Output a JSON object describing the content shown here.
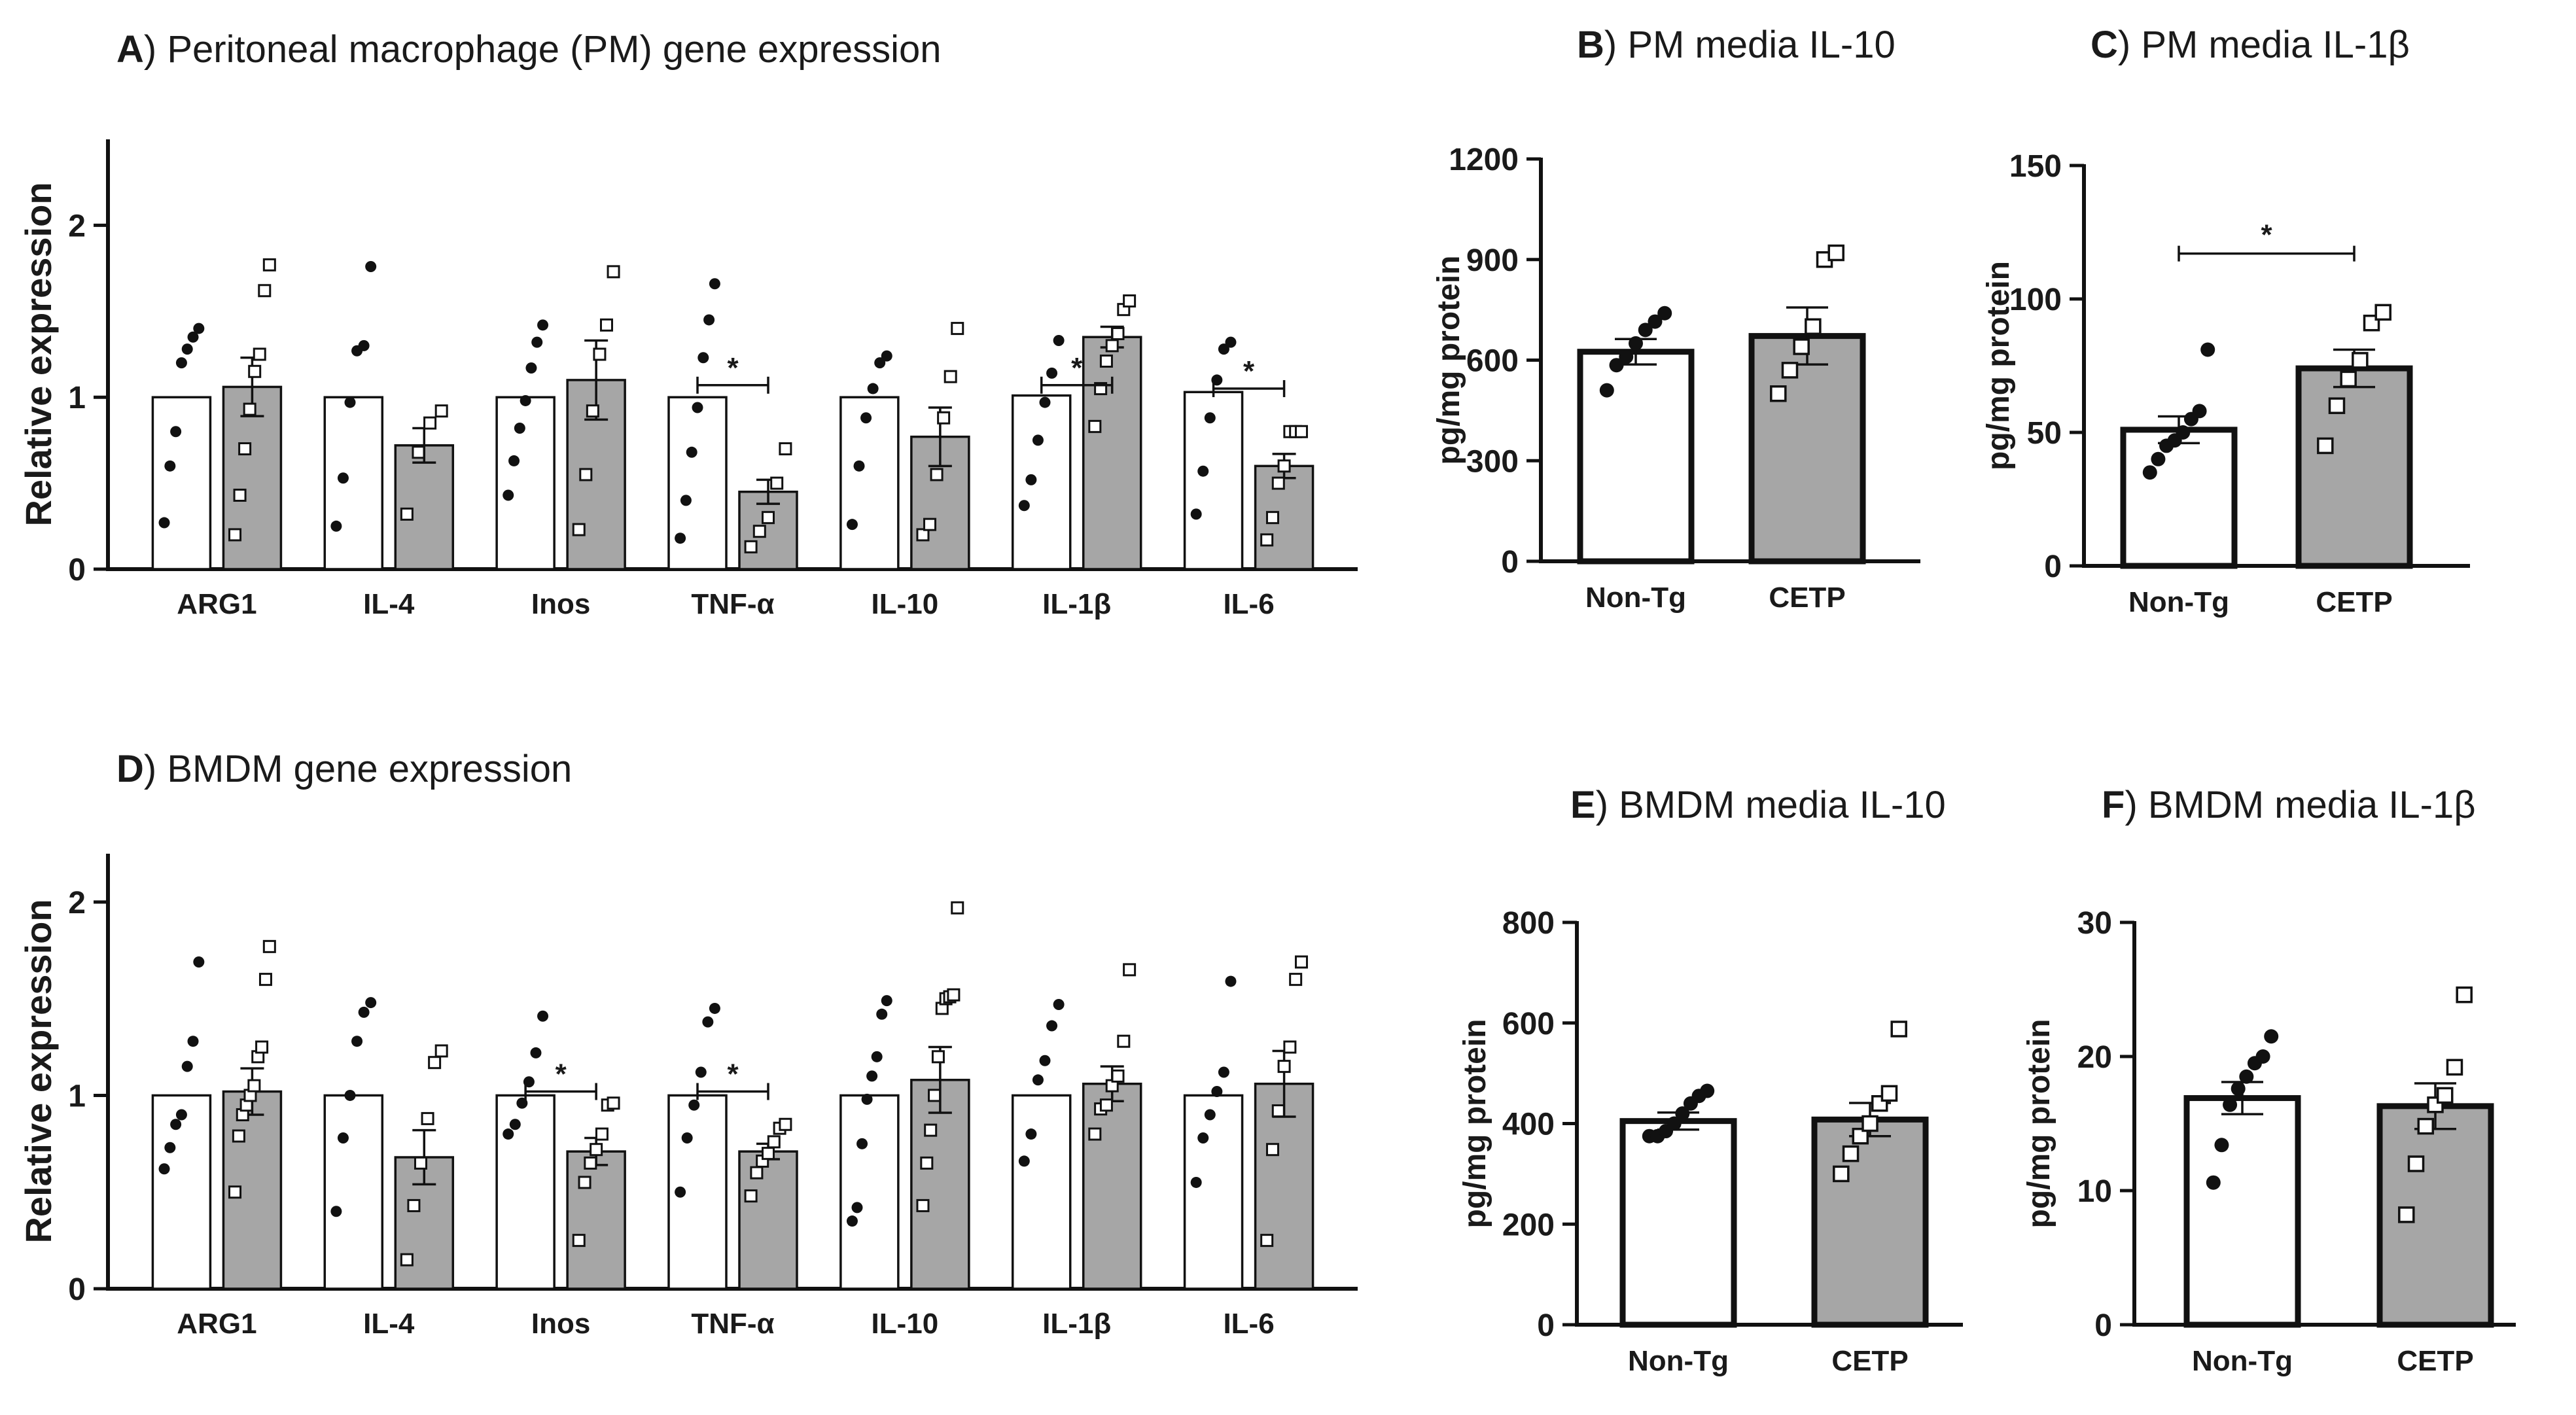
{
  "chart_data": [
    {
      "id": "A",
      "type": "bar",
      "letter": "A",
      "title": ") Peritoneal macrophage (PM) gene expression",
      "ylabel": "Relative expression",
      "ylim": [
        0,
        2.5
      ],
      "yticks": [
        "0",
        "1",
        "2"
      ],
      "categories": [
        "ARG1",
        "IL-4",
        "Inos",
        "TNF-α",
        "IL-10",
        "IL-1β",
        "IL-6"
      ],
      "series": [
        {
          "name": "Non-Tg",
          "values": [
            1.0,
            1.0,
            1.0,
            1.0,
            1.0,
            1.01,
            1.03
          ],
          "sem": [
            0.0,
            0.0,
            0.0,
            0.0,
            0.0,
            0.0,
            0.0
          ],
          "points": [
            [
              0.27,
              0.6,
              0.8,
              1.2,
              1.28,
              1.35,
              1.4
            ],
            [
              0.25,
              0.53,
              0.97,
              1.27,
              1.3,
              1.76
            ],
            [
              0.43,
              0.63,
              0.82,
              0.98,
              1.17,
              1.32,
              1.42
            ],
            [
              0.18,
              0.4,
              0.68,
              0.94,
              1.23,
              1.45,
              1.66
            ],
            [
              0.26,
              0.6,
              0.88,
              1.05,
              1.2,
              1.24
            ],
            [
              0.37,
              0.52,
              0.75,
              0.97,
              1.14,
              1.33
            ],
            [
              0.32,
              0.57,
              0.88,
              1.1,
              1.28,
              1.32
            ]
          ]
        },
        {
          "name": "CETP",
          "values": [
            1.06,
            0.72,
            1.1,
            0.45,
            0.77,
            1.35,
            0.6
          ],
          "sem": [
            0.17,
            0.1,
            0.23,
            0.07,
            0.17,
            0.06,
            0.07
          ],
          "points": [
            [
              0.2,
              0.43,
              0.7,
              0.93,
              1.15,
              1.25,
              1.62,
              1.77
            ],
            [
              0.32,
              0.68,
              0.85,
              0.92
            ],
            [
              0.23,
              0.55,
              0.92,
              1.25,
              1.42,
              1.73
            ],
            [
              0.13,
              0.22,
              0.3,
              0.5,
              0.7
            ],
            [
              0.2,
              0.26,
              0.55,
              0.88,
              1.12,
              1.4
            ],
            [
              0.83,
              1.05,
              1.21,
              1.3,
              1.37,
              1.51,
              1.56
            ],
            [
              0.17,
              0.3,
              0.5,
              0.6,
              0.8,
              0.8,
              0.8
            ]
          ]
        }
      ],
      "significance": [
        {
          "category": "TNF-α",
          "label": "*",
          "y": 1.07
        },
        {
          "category": "IL-1β",
          "label": "*",
          "y": 1.07
        },
        {
          "category": "IL-6",
          "label": "*",
          "y": 1.05
        }
      ]
    },
    {
      "id": "B",
      "type": "bar",
      "letter": "B",
      "title": ") PM media IL-10",
      "ylabel": "pg/mg protein",
      "ylim": [
        0,
        1200
      ],
      "yticks": [
        "0",
        "300",
        "600",
        "900",
        "1200"
      ],
      "categories": [
        "Non-Tg",
        "CETP"
      ],
      "series": [
        {
          "name": "value",
          "values": [
            625,
            672
          ],
          "sem": [
            38,
            85
          ]
        }
      ],
      "points": [
        [
          510,
          585,
          610,
          650,
          690,
          715,
          740
        ],
        [
          500,
          570,
          640,
          700,
          900,
          920
        ]
      ],
      "significance": []
    },
    {
      "id": "C",
      "type": "bar",
      "letter": "C",
      "title": ") PM media IL-1β",
      "ylabel": "pg/mg protein",
      "ylim": [
        0,
        150
      ],
      "yticks": [
        "0",
        "50",
        "100",
        "150"
      ],
      "categories": [
        "Non-Tg",
        "CETP"
      ],
      "series": [
        {
          "name": "value",
          "values": [
            51,
            74
          ],
          "sem": [
            5,
            7
          ]
        }
      ],
      "points": [
        [
          35,
          40,
          45,
          47,
          50,
          55,
          58,
          81
        ],
        [
          45,
          60,
          70,
          77,
          91,
          95
        ]
      ],
      "significance": [
        {
          "label": "*",
          "y": 117
        }
      ]
    },
    {
      "id": "D",
      "type": "bar",
      "letter": "D",
      "title": ") BMDM gene expression",
      "ylabel": "Relative expression",
      "ylim": [
        0,
        2.25
      ],
      "yticks": [
        "0",
        "1",
        "2"
      ],
      "categories": [
        "ARG1",
        "IL-4",
        "Inos",
        "TNF-α",
        "IL-10",
        "IL-1β",
        "IL-6"
      ],
      "series": [
        {
          "name": "Non-Tg",
          "values": [
            1.0,
            1.0,
            1.0,
            1.0,
            1.0,
            1.0,
            1.0
          ],
          "sem": [
            0.0,
            0.0,
            0.0,
            0.0,
            0.0,
            0.0,
            0.0
          ],
          "points": [
            [
              0.62,
              0.73,
              0.85,
              0.9,
              1.15,
              1.28,
              1.69
            ],
            [
              0.4,
              0.78,
              1.0,
              1.28,
              1.43,
              1.48
            ],
            [
              0.8,
              0.85,
              0.96,
              1.07,
              1.22,
              1.41
            ],
            [
              0.5,
              0.78,
              0.95,
              1.12,
              1.38,
              1.45
            ],
            [
              0.35,
              0.42,
              0.75,
              0.98,
              1.1,
              1.2,
              1.42,
              1.49
            ],
            [
              0.66,
              0.8,
              1.08,
              1.18,
              1.36,
              1.47
            ],
            [
              0.55,
              0.78,
              0.9,
              1.02,
              1.12,
              1.59
            ]
          ]
        },
        {
          "name": "CETP",
          "values": [
            1.02,
            0.68,
            0.71,
            0.71,
            1.08,
            1.06,
            1.06
          ],
          "sem": [
            0.12,
            0.14,
            0.07,
            0.04,
            0.17,
            0.09,
            0.17
          ],
          "points": [
            [
              0.5,
              0.79,
              0.9,
              0.95,
              1.0,
              1.05,
              1.2,
              1.25,
              1.6,
              1.77
            ],
            [
              0.15,
              0.43,
              0.65,
              0.88,
              1.17,
              1.23
            ],
            [
              0.25,
              0.55,
              0.65,
              0.72,
              0.8,
              0.95,
              0.96
            ],
            [
              0.48,
              0.6,
              0.66,
              0.7,
              0.76,
              0.83,
              0.85
            ],
            [
              0.43,
              0.65,
              0.82,
              1.0,
              1.2,
              1.45,
              1.5,
              1.51,
              1.52,
              1.97
            ],
            [
              0.8,
              0.93,
              0.95,
              1.05,
              1.1,
              1.28,
              1.65
            ],
            [
              0.25,
              0.72,
              0.92,
              1.15,
              1.25,
              1.6,
              1.69
            ]
          ]
        }
      ],
      "significance": [
        {
          "category": "Inos",
          "label": "*",
          "y": 1.02
        },
        {
          "category": "TNF-α",
          "label": "*",
          "y": 1.02
        }
      ]
    },
    {
      "id": "E",
      "type": "bar",
      "letter": "E",
      "title": ") BMDM media IL-10",
      "ylabel": "pg/mg protein",
      "ylim": [
        0,
        800
      ],
      "yticks": [
        "0",
        "200",
        "400",
        "600",
        "800"
      ],
      "categories": [
        "Non-Tg",
        "CETP"
      ],
      "series": [
        {
          "name": "value",
          "values": [
            405,
            408
          ],
          "sem": [
            17,
            33
          ]
        }
      ],
      "points": [
        [
          375,
          375,
          385,
          400,
          420,
          440,
          455,
          465
        ],
        [
          300,
          340,
          375,
          400,
          440,
          460,
          588
        ]
      ],
      "significance": []
    },
    {
      "id": "F",
      "type": "bar",
      "letter": "F",
      "title": ") BMDM media IL-1β",
      "ylabel": "pg/mg protein",
      "ylim": [
        0,
        30
      ],
      "yticks": [
        "0",
        "10",
        "20",
        "30"
      ],
      "categories": [
        "Non-Tg",
        "CETP"
      ],
      "series": [
        {
          "name": "value",
          "values": [
            16.9,
            16.3
          ],
          "sem": [
            1.2,
            1.7
          ]
        }
      ],
      "points": [
        [
          10.6,
          13.4,
          16.4,
          17.6,
          18.5,
          19.5,
          20.0,
          21.5
        ],
        [
          8.2,
          12.0,
          14.8,
          16.4,
          17.1,
          19.2,
          24.6
        ]
      ],
      "significance": []
    }
  ]
}
